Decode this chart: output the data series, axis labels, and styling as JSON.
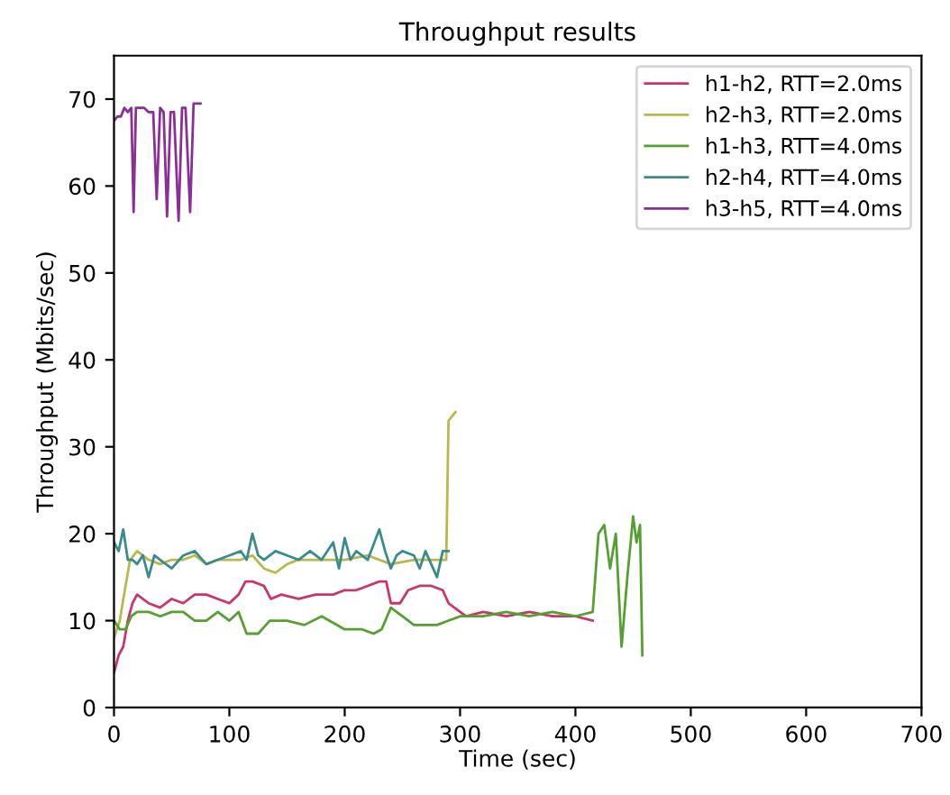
{
  "chart_data": {
    "type": "line",
    "title": "Throughput results",
    "xlabel": "Time (sec)",
    "ylabel": "Throughput (Mbits/sec)",
    "xlim": [
      0,
      700
    ],
    "ylim": [
      0,
      75
    ],
    "xticks": [
      0,
      100,
      200,
      300,
      400,
      500,
      600,
      700
    ],
    "yticks": [
      0,
      10,
      20,
      30,
      40,
      50,
      60,
      70
    ],
    "grid": false,
    "legend": "top right",
    "marker": "none",
    "line_style": "solid",
    "series": [
      {
        "name": "h1-h2, RTT=2.0ms",
        "color": "#c8366a",
        "x": [
          0,
          4,
          8,
          12,
          16,
          20,
          30,
          40,
          50,
          60,
          70,
          80,
          90,
          100,
          108,
          114,
          120,
          130,
          136,
          145,
          160,
          175,
          190,
          200,
          210,
          220,
          230,
          236,
          240,
          248,
          255,
          265,
          275,
          285,
          290,
          295,
          305,
          320,
          340,
          360,
          380,
          400,
          415
        ],
        "values": [
          4,
          6,
          7,
          10,
          12,
          13,
          12,
          11.5,
          12.5,
          12,
          13,
          13,
          12.5,
          12,
          13,
          14.5,
          14.5,
          14,
          12.5,
          13,
          12.5,
          13,
          13,
          13.5,
          13.5,
          14,
          14.5,
          14.5,
          12,
          12,
          13.5,
          14,
          14,
          13.5,
          12,
          11.5,
          10.5,
          11,
          10.5,
          11,
          10.5,
          10.5,
          10
        ]
      },
      {
        "name": "h2-h3, RTT=2.0ms",
        "color": "#b9b84e",
        "x": [
          0,
          5,
          10,
          14,
          20,
          30,
          40,
          50,
          60,
          70,
          80,
          90,
          100,
          110,
          120,
          130,
          140,
          150,
          160,
          180,
          200,
          220,
          240,
          260,
          275,
          288,
          290,
          293,
          296
        ],
        "values": [
          8,
          10,
          14,
          17,
          18,
          17,
          16.5,
          17,
          17,
          17.5,
          16.5,
          17,
          17,
          17,
          17.5,
          16,
          15.5,
          16.5,
          17,
          17,
          17,
          17.5,
          16.5,
          17,
          17,
          17,
          33,
          33.5,
          34
        ]
      },
      {
        "name": "h1-h3, RTT=4.0ms",
        "color": "#55a030",
        "x": [
          0,
          5,
          10,
          15,
          20,
          30,
          40,
          50,
          60,
          70,
          80,
          90,
          100,
          108,
          115,
          125,
          135,
          150,
          165,
          180,
          200,
          215,
          225,
          232,
          240,
          250,
          260,
          270,
          280,
          290,
          300,
          320,
          340,
          360,
          380,
          400,
          415,
          420,
          425,
          430,
          435,
          440,
          445,
          450,
          453,
          456,
          458
        ],
        "values": [
          10,
          9,
          9,
          10.5,
          11,
          11,
          10.5,
          11,
          11,
          10,
          10,
          11,
          10,
          11,
          8.5,
          8.5,
          10,
          10,
          9.5,
          10.5,
          9,
          9,
          8.5,
          9,
          11.5,
          10.5,
          9.5,
          9.5,
          9.5,
          10,
          10.5,
          10.5,
          11,
          10.5,
          11,
          10.5,
          11,
          20,
          21,
          16,
          20,
          7,
          15,
          22,
          19,
          21,
          6
        ]
      },
      {
        "name": "h2-h4, RTT=4.0ms",
        "color": "#3a8c8c",
        "x": [
          0,
          4,
          8,
          12,
          16,
          20,
          25,
          30,
          35,
          40,
          50,
          60,
          70,
          80,
          90,
          100,
          110,
          115,
          120,
          125,
          130,
          140,
          150,
          160,
          170,
          180,
          190,
          195,
          200,
          205,
          210,
          220,
          230,
          235,
          240,
          245,
          250,
          260,
          265,
          270,
          280,
          285,
          290
        ],
        "values": [
          19,
          18,
          20.5,
          17,
          17,
          16.5,
          17.5,
          15,
          17.5,
          17,
          16,
          17.5,
          18,
          16.5,
          17,
          17.5,
          18,
          17,
          20,
          17.5,
          17,
          18,
          17.5,
          17,
          18,
          17,
          19,
          16,
          19.5,
          17,
          18,
          17,
          20.5,
          18,
          16,
          17.5,
          18,
          17.5,
          16,
          18,
          15,
          18,
          18
        ]
      },
      {
        "name": "h3-h5, RTT=4.0ms",
        "color": "#8a2f95",
        "x": [
          0,
          3,
          6,
          9,
          12,
          15,
          17,
          19,
          22,
          26,
          30,
          34,
          37,
          40,
          43,
          46,
          49,
          52,
          56,
          59,
          62,
          66,
          69,
          72,
          75
        ],
        "values": [
          67.5,
          68,
          68,
          69,
          68.5,
          69,
          57,
          69,
          69,
          69,
          68.5,
          68.5,
          58.5,
          69,
          68.5,
          56.5,
          68.5,
          68.5,
          56,
          69,
          69,
          57,
          69.5,
          69.5,
          69.5
        ]
      }
    ]
  }
}
